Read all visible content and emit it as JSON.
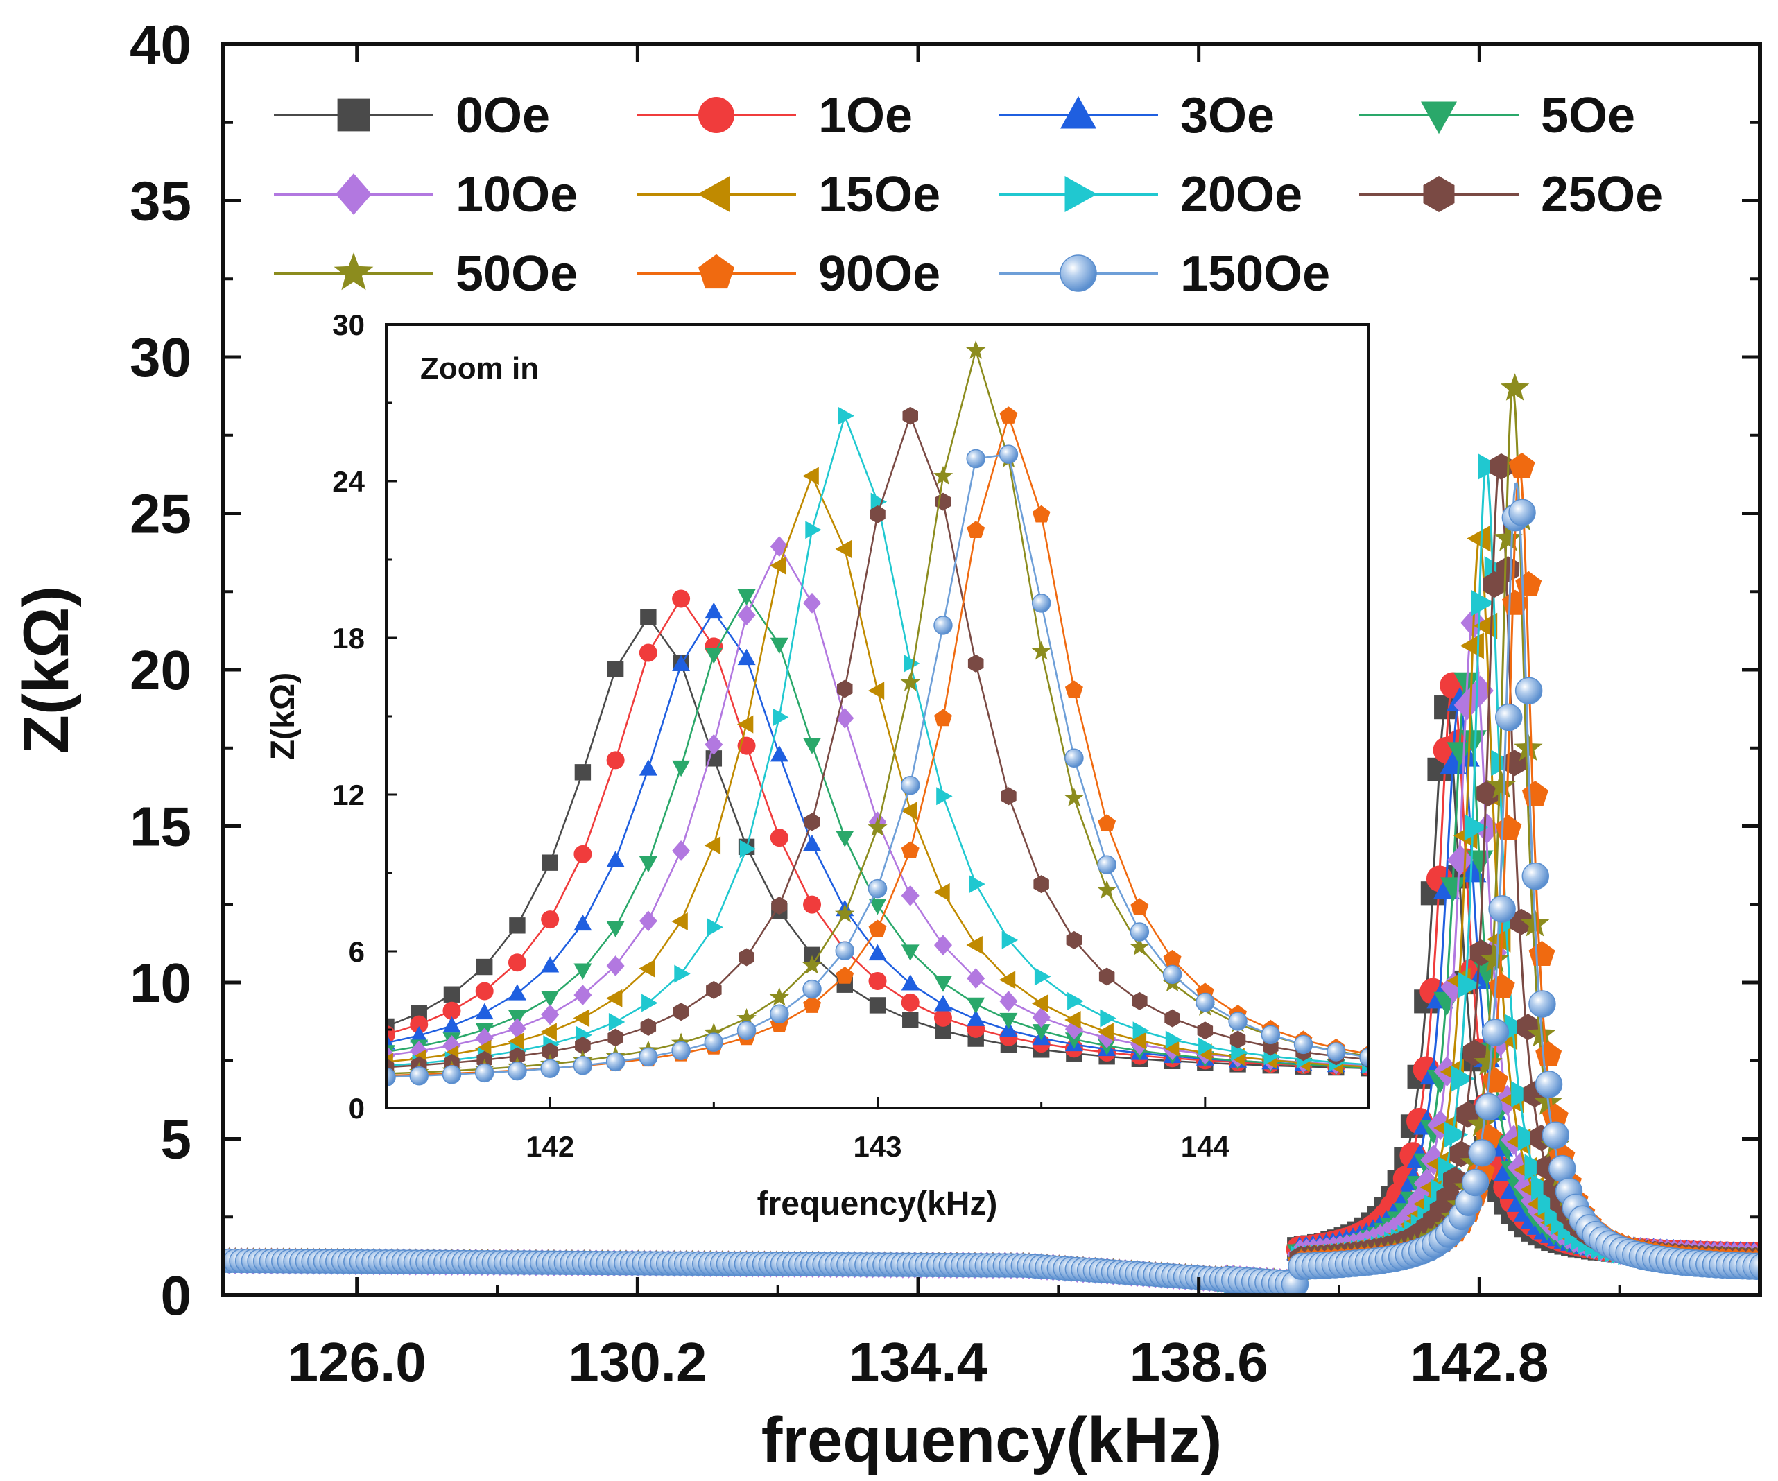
{
  "chart_data": {
    "type": "line",
    "main": {
      "xlabel": "frequency(kHz)",
      "ylabel": "Z(kΩ)",
      "xlim": [
        124.0,
        147.0
      ],
      "ylim": [
        0,
        40
      ],
      "xticks": [
        126.0,
        130.2,
        134.4,
        138.6,
        142.8
      ],
      "xtick_labels": [
        "126.0",
        "130.2",
        "134.4",
        "138.6",
        "142.8"
      ],
      "yticks": [
        0,
        5,
        10,
        15,
        20,
        25,
        30,
        35,
        40
      ],
      "ytick_labels": [
        "0",
        "5",
        "10",
        "15",
        "20",
        "25",
        "30",
        "35",
        "40"
      ],
      "baseline_low": 1.1,
      "baseline_high": 0.9
    },
    "inset": {
      "title": "Zoom in",
      "xlabel": "frequency(kHz)",
      "ylabel": "Z(kΩ)",
      "xlim": [
        141.5,
        144.5
      ],
      "ylim": [
        0,
        30
      ],
      "xticks": [
        142,
        143,
        144
      ],
      "xtick_labels": [
        "142",
        "143",
        "144"
      ],
      "yticks": [
        0,
        6,
        12,
        18,
        24,
        30
      ],
      "ytick_labels": [
        "0",
        "6",
        "12",
        "18",
        "24",
        "30"
      ],
      "x_step": 0.1
    },
    "series": [
      {
        "name": "0Oe",
        "color": "#4a4a4a",
        "marker": "square",
        "peak_x": 142.3,
        "peak_y": 18.8,
        "left_gamma": 0.28,
        "right_gamma": 0.3,
        "floor": 1.2
      },
      {
        "name": "1Oe",
        "color": "#f03c3c",
        "marker": "circle",
        "peak_x": 142.4,
        "peak_y": 19.5,
        "left_gamma": 0.28,
        "right_gamma": 0.3,
        "floor": 1.2
      },
      {
        "name": "3Oe",
        "color": "#1f5fe0",
        "marker": "triangle-up",
        "peak_x": 142.5,
        "peak_y": 19.0,
        "left_gamma": 0.28,
        "right_gamma": 0.3,
        "floor": 1.2
      },
      {
        "name": "5Oe",
        "color": "#2aa86a",
        "marker": "triangle-down",
        "peak_x": 142.6,
        "peak_y": 19.6,
        "left_gamma": 0.27,
        "right_gamma": 0.3,
        "floor": 1.1
      },
      {
        "name": "10Oe",
        "color": "#b278e0",
        "marker": "diamond",
        "peak_x": 142.7,
        "peak_y": 21.5,
        "left_gamma": 0.26,
        "right_gamma": 0.29,
        "floor": 1.1
      },
      {
        "name": "15Oe",
        "color": "#c08a00",
        "marker": "triangle-left",
        "peak_x": 142.8,
        "peak_y": 24.2,
        "left_gamma": 0.24,
        "right_gamma": 0.27,
        "floor": 1.0
      },
      {
        "name": "20Oe",
        "color": "#20c8d0",
        "marker": "triangle-right",
        "peak_x": 142.9,
        "peak_y": 26.5,
        "left_gamma": 0.22,
        "right_gamma": 0.26,
        "floor": 1.0
      },
      {
        "name": "25Oe",
        "color": "#7a4a44",
        "marker": "hexagon",
        "peak_x": 143.1,
        "peak_y": 26.5,
        "left_gamma": 0.24,
        "right_gamma": 0.26,
        "floor": 1.0
      },
      {
        "name": "50Oe",
        "color": "#8c8c1e",
        "marker": "star",
        "peak_x": 143.3,
        "peak_y": 29.0,
        "left_gamma": 0.22,
        "right_gamma": 0.24,
        "floor": 0.9
      },
      {
        "name": "90Oe",
        "color": "#f06a10",
        "marker": "pentagon",
        "peak_x": 143.4,
        "peak_y": 26.5,
        "left_gamma": 0.22,
        "right_gamma": 0.24,
        "floor": 0.9
      },
      {
        "name": "150Oe",
        "color": "#6e9fd8",
        "marker": "sphere",
        "peak_x": 143.35,
        "peak_y": 26.0,
        "left_gamma": 0.23,
        "right_gamma": 0.25,
        "floor": 0.8
      }
    ]
  }
}
